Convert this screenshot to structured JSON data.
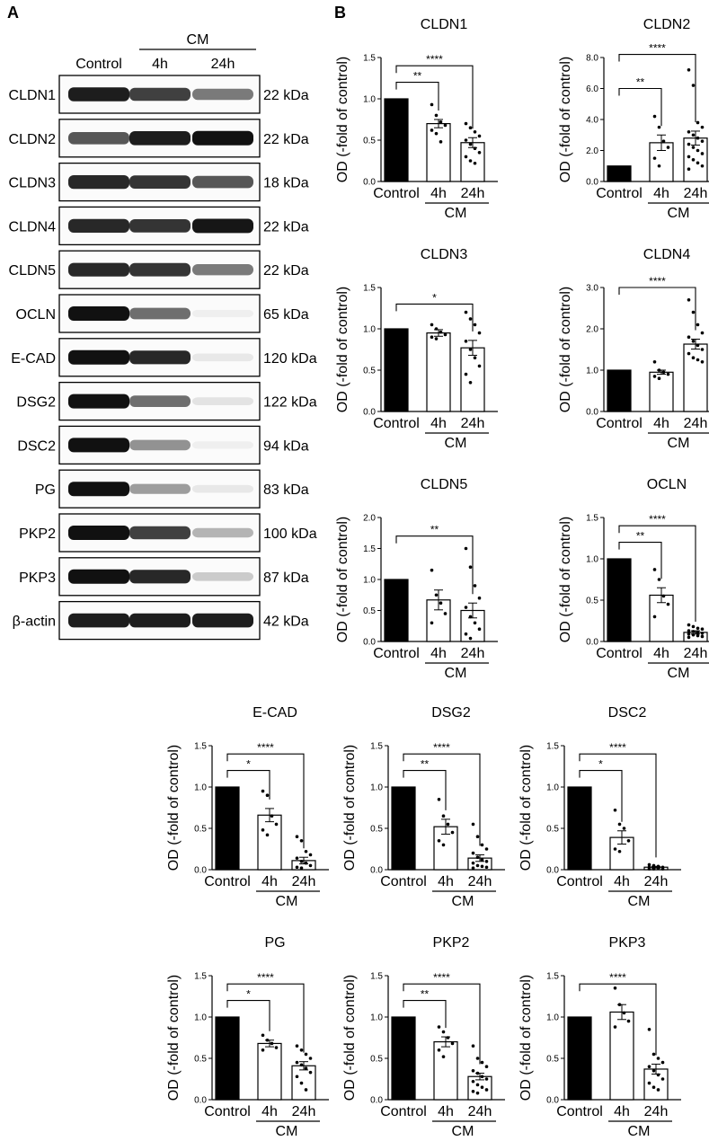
{
  "panel_labels": {
    "a": "A",
    "b": "B"
  },
  "blot": {
    "group_label": "CM",
    "lanes": [
      "Control",
      "4h",
      "24h"
    ],
    "rows": [
      {
        "protein": "CLDN1",
        "size": "22 kDa",
        "intensity": [
          0.95,
          0.8,
          0.55
        ]
      },
      {
        "protein": "CLDN2",
        "size": "22 kDa",
        "intensity": [
          0.7,
          0.95,
          1.0
        ]
      },
      {
        "protein": "CLDN3",
        "size": "18 kDa",
        "intensity": [
          0.9,
          0.85,
          0.7
        ]
      },
      {
        "protein": "CLDN4",
        "size": "22 kDa",
        "intensity": [
          0.9,
          0.85,
          0.98
        ]
      },
      {
        "protein": "CLDN5",
        "size": "22 kDa",
        "intensity": [
          0.9,
          0.85,
          0.55
        ]
      },
      {
        "protein": "OCLN",
        "size": "65 kDa",
        "intensity": [
          1.0,
          0.6,
          0.03
        ]
      },
      {
        "protein": "E-CAD",
        "size": "120 kDa",
        "intensity": [
          1.0,
          0.9,
          0.08
        ]
      },
      {
        "protein": "DSG2",
        "size": "122 kDa",
        "intensity": [
          1.0,
          0.6,
          0.1
        ]
      },
      {
        "protein": "DSC2",
        "size": "94 kDa",
        "intensity": [
          1.0,
          0.45,
          0.03
        ]
      },
      {
        "protein": "PG",
        "size": "83 kDa",
        "intensity": [
          1.0,
          0.4,
          0.08
        ]
      },
      {
        "protein": "PKP2",
        "size": "100 kDa",
        "intensity": [
          1.0,
          0.8,
          0.3
        ]
      },
      {
        "protein": "PKP3",
        "size": "87 kDa",
        "intensity": [
          1.0,
          0.9,
          0.2
        ]
      },
      {
        "protein": "β-actin",
        "size": "42 kDa",
        "intensity": [
          0.95,
          0.95,
          0.95
        ]
      }
    ]
  },
  "chart_data": [
    {
      "type": "bar",
      "title": "CLDN1",
      "ylabel": "OD (-fold of control)",
      "categories": [
        "Control",
        "4h",
        "24h"
      ],
      "group_label": "CM",
      "values": [
        1.0,
        0.7,
        0.47
      ],
      "errors": [
        0,
        0.05,
        0.06
      ],
      "ylim": [
        0,
        1.5
      ],
      "yticks": [
        0.0,
        0.5,
        1.0,
        1.5
      ],
      "ytick_labels": [
        "0.0",
        "0.5",
        "1.0",
        "1.5"
      ],
      "points": [
        [],
        [
          0.93,
          0.8,
          0.72,
          0.68,
          0.62,
          0.58,
          0.48
        ],
        [
          0.7,
          0.65,
          0.6,
          0.55,
          0.5,
          0.45,
          0.4,
          0.35,
          0.3,
          0.25,
          0.22
        ]
      ],
      "significance": [
        {
          "label": "**",
          "from": 0,
          "to": 1,
          "y": 1.2
        },
        {
          "label": "****",
          "from": 0,
          "to": 2,
          "y": 1.4
        }
      ]
    },
    {
      "type": "bar",
      "title": "CLDN2",
      "ylabel": "OD (-fold of control)",
      "categories": [
        "Control",
        "4h",
        "24h"
      ],
      "group_label": "CM",
      "values": [
        1.0,
        2.5,
        2.8
      ],
      "errors": [
        0,
        0.5,
        0.45
      ],
      "ylim": [
        0,
        8.0
      ],
      "yticks": [
        0.0,
        2.0,
        4.0,
        6.0,
        8.0
      ],
      "ytick_labels": [
        "0.0",
        "2.0",
        "4.0",
        "6.0",
        "8.0"
      ],
      "points": [
        [],
        [
          4.2,
          3.5,
          2.6,
          2.2,
          1.5,
          1.0
        ],
        [
          7.2,
          6.2,
          3.8,
          3.5,
          3.2,
          3.0,
          2.8,
          2.6,
          2.4,
          2.2,
          2.0,
          1.8,
          1.6,
          1.4,
          1.2,
          1.0,
          0.8
        ]
      ],
      "significance": [
        {
          "label": "**",
          "from": 0,
          "to": 1,
          "y": 6.0
        },
        {
          "label": "****",
          "from": 0,
          "to": 2,
          "y": 8.2
        }
      ]
    },
    {
      "type": "bar",
      "title": "CLDN3",
      "ylabel": "OD (-fold of control)",
      "categories": [
        "Control",
        "4h",
        "24h"
      ],
      "group_label": "CM",
      "values": [
        1.0,
        0.95,
        0.77
      ],
      "errors": [
        0,
        0.04,
        0.09
      ],
      "ylim": [
        0,
        1.5
      ],
      "yticks": [
        0.0,
        0.5,
        1.0,
        1.5
      ],
      "ytick_labels": [
        "0.0",
        "0.5",
        "1.0",
        "1.5"
      ],
      "points": [
        [],
        [
          1.05,
          1.0,
          0.96,
          0.93,
          0.9,
          0.88
        ],
        [
          1.2,
          1.12,
          1.05,
          0.95,
          0.85,
          0.75,
          0.65,
          0.55,
          0.45,
          0.35
        ]
      ],
      "significance": [
        {
          "label": "*",
          "from": 0,
          "to": 2,
          "y": 1.3
        }
      ]
    },
    {
      "type": "bar",
      "title": "CLDN4",
      "ylabel": "OD (-fold of control)",
      "categories": [
        "Control",
        "4h",
        "24h"
      ],
      "group_label": "CM",
      "values": [
        1.0,
        0.95,
        1.63
      ],
      "errors": [
        0,
        0.05,
        0.12
      ],
      "ylim": [
        0,
        3.0
      ],
      "yticks": [
        0.0,
        1.0,
        2.0,
        3.0
      ],
      "ytick_labels": [
        "0.0",
        "1.0",
        "2.0",
        "3.0"
      ],
      "points": [
        [],
        [
          1.2,
          1.0,
          0.95,
          0.9,
          0.85,
          0.8
        ],
        [
          2.7,
          2.4,
          2.1,
          1.9,
          1.8,
          1.7,
          1.6,
          1.5,
          1.4,
          1.3,
          1.25,
          1.2
        ]
      ],
      "significance": [
        {
          "label": "****",
          "from": 0,
          "to": 2,
          "y": 3.0
        }
      ]
    },
    {
      "type": "bar",
      "title": "CLDN5",
      "ylabel": "OD (-fold of control)",
      "categories": [
        "Control",
        "4h",
        "24h"
      ],
      "group_label": "CM",
      "values": [
        1.0,
        0.67,
        0.5
      ],
      "errors": [
        0,
        0.16,
        0.12
      ],
      "ylim": [
        0,
        2.0
      ],
      "yticks": [
        0.0,
        0.5,
        1.0,
        1.5,
        2.0
      ],
      "ytick_labels": [
        "0.0",
        "0.5",
        "1.0",
        "1.5",
        "2.0"
      ],
      "points": [
        [],
        [
          1.15,
          0.75,
          0.62,
          0.45,
          0.3
        ],
        [
          1.5,
          1.2,
          0.9,
          0.7,
          0.55,
          0.4,
          0.3,
          0.2,
          0.12,
          0.05
        ]
      ],
      "significance": [
        {
          "label": "**",
          "from": 0,
          "to": 2,
          "y": 1.7
        }
      ]
    },
    {
      "type": "bar",
      "title": "OCLN",
      "ylabel": "OD (-fold of control)",
      "categories": [
        "Control",
        "4h",
        "24h"
      ],
      "group_label": "CM",
      "values": [
        1.0,
        0.56,
        0.11
      ],
      "errors": [
        0,
        0.09,
        0.02
      ],
      "ylim": [
        0,
        1.5
      ],
      "yticks": [
        0.0,
        0.5,
        1.0,
        1.5
      ],
      "ytick_labels": [
        "0.0",
        "0.5",
        "1.0",
        "1.5"
      ],
      "points": [
        [],
        [
          0.87,
          0.75,
          0.55,
          0.45,
          0.3
        ],
        [
          0.2,
          0.18,
          0.16,
          0.15,
          0.13,
          0.12,
          0.11,
          0.1,
          0.09,
          0.08,
          0.07,
          0.06,
          0.05
        ]
      ],
      "significance": [
        {
          "label": "**",
          "from": 0,
          "to": 1,
          "y": 1.2
        },
        {
          "label": "****",
          "from": 0,
          "to": 2,
          "y": 1.4
        }
      ]
    },
    {
      "type": "bar",
      "title": "E-CAD",
      "ylabel": "OD (-fold of control)",
      "categories": [
        "Control",
        "4h",
        "24h"
      ],
      "group_label": "CM",
      "values": [
        1.0,
        0.66,
        0.11
      ],
      "errors": [
        0,
        0.08,
        0.04
      ],
      "ylim": [
        0,
        1.5
      ],
      "yticks": [
        0.0,
        0.5,
        1.0,
        1.5
      ],
      "ytick_labels": [
        "0.0",
        "0.5",
        "1.0",
        "1.5"
      ],
      "points": [
        [],
        [
          0.95,
          0.9,
          0.65,
          0.55,
          0.48,
          0.42
        ],
        [
          0.4,
          0.35,
          0.22,
          0.18,
          0.14,
          0.1,
          0.08,
          0.05,
          0.03,
          0.02
        ]
      ],
      "significance": [
        {
          "label": "*",
          "from": 0,
          "to": 1,
          "y": 1.2
        },
        {
          "label": "****",
          "from": 0,
          "to": 2,
          "y": 1.4
        }
      ]
    },
    {
      "type": "bar",
      "title": "DSG2",
      "ylabel": "OD (-fold of control)",
      "categories": [
        "Control",
        "4h",
        "24h"
      ],
      "group_label": "CM",
      "values": [
        1.0,
        0.52,
        0.14
      ],
      "errors": [
        0,
        0.09,
        0.04
      ],
      "ylim": [
        0,
        1.5
      ],
      "yticks": [
        0.0,
        0.5,
        1.0,
        1.5
      ],
      "ytick_labels": [
        "0.0",
        "0.5",
        "1.0",
        "1.5"
      ],
      "points": [
        [],
        [
          0.85,
          0.65,
          0.55,
          0.45,
          0.35,
          0.3
        ],
        [
          0.55,
          0.4,
          0.3,
          0.25,
          0.2,
          0.15,
          0.12,
          0.1,
          0.08,
          0.05,
          0.04,
          0.03,
          0.02
        ]
      ],
      "significance": [
        {
          "label": "**",
          "from": 0,
          "to": 1,
          "y": 1.2
        },
        {
          "label": "****",
          "from": 0,
          "to": 2,
          "y": 1.4
        }
      ]
    },
    {
      "type": "bar",
      "title": "DSC2",
      "ylabel": "OD (-fold of control)",
      "categories": [
        "Control",
        "4h",
        "24h"
      ],
      "group_label": "CM",
      "values": [
        1.0,
        0.39,
        0.03
      ],
      "errors": [
        0,
        0.08,
        0.01
      ],
      "ylim": [
        0,
        1.5
      ],
      "yticks": [
        0.0,
        0.5,
        1.0,
        1.5
      ],
      "ytick_labels": [
        "0.0",
        "0.5",
        "1.0",
        "1.5"
      ],
      "points": [
        [],
        [
          0.72,
          0.55,
          0.5,
          0.35,
          0.25,
          0.22
        ],
        [
          0.06,
          0.05,
          0.04,
          0.03,
          0.03,
          0.02,
          0.02,
          0.01,
          0.01,
          0.01
        ]
      ],
      "significance": [
        {
          "label": "*",
          "from": 0,
          "to": 1,
          "y": 1.2
        },
        {
          "label": "****",
          "from": 0,
          "to": 2,
          "y": 1.4
        }
      ]
    },
    {
      "type": "bar",
      "title": "PG",
      "ylabel": "OD (-fold of control)",
      "categories": [
        "Control",
        "4h",
        "24h"
      ],
      "group_label": "CM",
      "values": [
        1.0,
        0.68,
        0.41
      ],
      "errors": [
        0,
        0.04,
        0.05
      ],
      "ylim": [
        0,
        1.5
      ],
      "yticks": [
        0.0,
        0.5,
        1.0,
        1.5
      ],
      "ytick_labels": [
        "0.0",
        "0.5",
        "1.0",
        "1.5"
      ],
      "points": [
        [],
        [
          0.78,
          0.72,
          0.68,
          0.63,
          0.6
        ],
        [
          0.65,
          0.6,
          0.55,
          0.5,
          0.45,
          0.42,
          0.38,
          0.33,
          0.28,
          0.2,
          0.12
        ]
      ],
      "significance": [
        {
          "label": "*",
          "from": 0,
          "to": 1,
          "y": 1.2
        },
        {
          "label": "****",
          "from": 0,
          "to": 2,
          "y": 1.4
        }
      ]
    },
    {
      "type": "bar",
      "title": "PKP2",
      "ylabel": "OD (-fold of control)",
      "categories": [
        "Control",
        "4h",
        "24h"
      ],
      "group_label": "CM",
      "values": [
        1.0,
        0.7,
        0.28
      ],
      "errors": [
        0,
        0.06,
        0.04
      ],
      "ylim": [
        0,
        1.5
      ],
      "yticks": [
        0.0,
        0.5,
        1.0,
        1.5
      ],
      "ytick_labels": [
        "0.0",
        "0.5",
        "1.0",
        "1.5"
      ],
      "points": [
        [],
        [
          0.88,
          0.82,
          0.75,
          0.68,
          0.6,
          0.52
        ],
        [
          0.65,
          0.5,
          0.45,
          0.4,
          0.35,
          0.32,
          0.28,
          0.25,
          0.22,
          0.18,
          0.15,
          0.12,
          0.1,
          0.08
        ]
      ],
      "significance": [
        {
          "label": "**",
          "from": 0,
          "to": 1,
          "y": 1.2
        },
        {
          "label": "****",
          "from": 0,
          "to": 2,
          "y": 1.4
        }
      ]
    },
    {
      "type": "bar",
      "title": "PKP3",
      "ylabel": "OD (-fold of control)",
      "categories": [
        "Control",
        "4h",
        "24h"
      ],
      "group_label": "CM",
      "values": [
        1.0,
        1.06,
        0.37
      ],
      "errors": [
        0,
        0.09,
        0.06
      ],
      "ylim": [
        0,
        1.5
      ],
      "yticks": [
        0.0,
        0.5,
        1.0,
        1.5
      ],
      "ytick_labels": [
        "0.0",
        "0.5",
        "1.0",
        "1.5"
      ],
      "points": [
        [],
        [
          1.35,
          1.15,
          1.05,
          0.95,
          0.88
        ],
        [
          0.85,
          0.55,
          0.5,
          0.45,
          0.4,
          0.35,
          0.3,
          0.25,
          0.2,
          0.15,
          0.12
        ]
      ],
      "significance": [
        {
          "label": "****",
          "from": 0,
          "to": 2,
          "y": 1.4
        }
      ]
    }
  ],
  "colors": {
    "control_bar": "#000000",
    "treated_bar": "#ffffff",
    "stroke": "#000000",
    "background": "#ffffff"
  }
}
